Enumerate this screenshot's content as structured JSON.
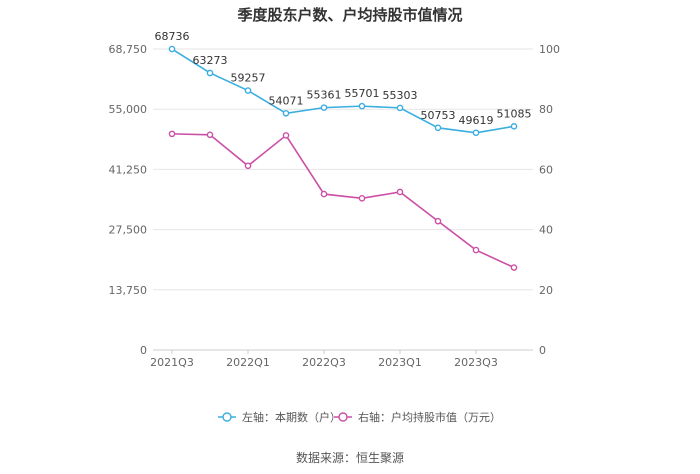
{
  "chart_data": {
    "type": "line",
    "title": "季度股东户数、户均持股市值情况",
    "x": [
      "2021Q3",
      "2021Q4",
      "2022Q1",
      "2022Q2",
      "2022Q3",
      "2022Q4",
      "2023Q1",
      "2023Q2",
      "2023Q3",
      "2023Q4"
    ],
    "x_tick_labels": [
      "2021Q3",
      "2022Q1",
      "2022Q3",
      "2023Q1",
      "2023Q3"
    ],
    "y_left": {
      "ylim": [
        0,
        68750
      ],
      "ticks": [
        "0",
        "13,750",
        "27,500",
        "41,250",
        "55,000",
        "68,750"
      ]
    },
    "y_right": {
      "ylim": [
        0,
        100
      ],
      "ticks": [
        "0",
        "20",
        "40",
        "60",
        "80",
        "100"
      ]
    },
    "series": [
      {
        "name": "左轴：本期数（户）",
        "axis": "left",
        "color": "#3aaee0",
        "values": [
          68736,
          63273,
          59257,
          54071,
          55361,
          55701,
          55303,
          50753,
          49619,
          51085
        ],
        "labels": [
          "68736",
          "63273",
          "59257",
          "54071",
          "55361",
          "55701",
          "55303",
          "50753",
          "49619",
          "51085"
        ]
      },
      {
        "name": "右轴：户均持股市值（万元）",
        "axis": "right",
        "color": "#cc4fa6",
        "values": [
          71.8,
          71.5,
          61.2,
          71.3,
          51.8,
          50.4,
          52.5,
          42.8,
          33.2,
          27.4
        ]
      }
    ],
    "grid": true,
    "legend_position": "bottom"
  },
  "source": "数据来源：恒生聚源"
}
